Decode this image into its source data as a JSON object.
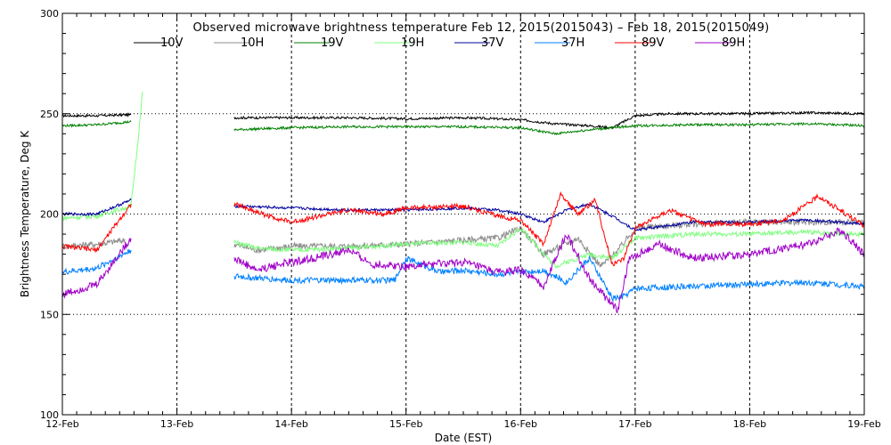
{
  "chart_data": {
    "type": "line",
    "title": "Observed microwave brightness temperature Feb 12, 2015(2015043) – Feb 18, 2015(2015049)",
    "xlabel": "Date (EST)",
    "ylabel": "Brightness Temperature, Deg K",
    "xlim": [
      0,
      7
    ],
    "ylim": [
      100,
      300
    ],
    "x_tick_labels": [
      "12-Feb",
      "13-Feb",
      "14-Feb",
      "15-Feb",
      "16-Feb",
      "17-Feb",
      "18-Feb",
      "19-Feb"
    ],
    "y_tick_labels": [
      "100",
      "150",
      "200",
      "250",
      "300"
    ],
    "grid": "dotted",
    "legend_position": "top",
    "x_unit_note": "x values are days after 12-Feb 00:00 EST",
    "series": [
      {
        "name": "10V",
        "color": "#000000",
        "x": [
          0,
          0.3,
          0.6,
          1.5,
          2.0,
          2.5,
          3.0,
          3.5,
          4.0,
          4.3,
          4.6,
          4.8,
          5.0,
          5.3,
          5.6,
          6.0,
          6.5,
          7.0
        ],
        "y": [
          249,
          249,
          249.5,
          248,
          248,
          248,
          247.5,
          248,
          247,
          245,
          244,
          243,
          249,
          250,
          250,
          250,
          250.5,
          250
        ]
      },
      {
        "name": "10H",
        "color": "#8c8c8c",
        "x": [
          0,
          0.3,
          0.55,
          1.5,
          1.7,
          2.0,
          2.5,
          3.0,
          3.5,
          3.8,
          4.0,
          4.2,
          4.5,
          4.7,
          4.85,
          5.0,
          5.5,
          6.0,
          6.5,
          7.0
        ],
        "y": [
          184,
          185,
          187,
          185,
          182,
          184,
          184,
          185,
          187,
          188,
          193,
          180,
          188,
          174,
          182,
          193,
          195,
          196,
          196,
          196
        ]
      },
      {
        "name": "19V",
        "color": "#008000",
        "x": [
          0,
          0.3,
          0.6,
          1.5,
          2.0,
          2.5,
          3.0,
          3.5,
          4.0,
          4.3,
          4.6,
          5.0,
          5.5,
          6.0,
          6.5,
          7.0
        ],
        "y": [
          244,
          244.5,
          246,
          242,
          243,
          243.5,
          243.5,
          243.5,
          243,
          240,
          242,
          244,
          244.5,
          244.5,
          245,
          244
        ]
      },
      {
        "name": "19H",
        "color": "#80ff80",
        "x": [
          0,
          0.3,
          0.6,
          0.68,
          0.7,
          1.5,
          1.7,
          2.0,
          2.5,
          3.0,
          3.5,
          3.8,
          4.0,
          4.3,
          4.6,
          4.8,
          5.0,
          5.5,
          6.0,
          6.5,
          7.0
        ],
        "y": [
          198,
          199,
          204,
          248,
          261,
          186,
          183,
          182,
          183,
          185,
          186,
          184,
          193,
          174,
          180,
          178,
          188,
          190,
          190,
          191,
          190
        ]
      },
      {
        "name": "37V",
        "color": "#0000a0",
        "x": [
          0,
          0.3,
          0.6,
          1.5,
          2.0,
          2.5,
          3.0,
          3.5,
          3.8,
          4.0,
          4.2,
          4.4,
          4.6,
          4.8,
          5.0,
          5.5,
          6.0,
          6.5,
          7.0
        ],
        "y": [
          200,
          200,
          207,
          204,
          203,
          202,
          202,
          203,
          202,
          200,
          196,
          202,
          205,
          199,
          192,
          196,
          196,
          197,
          195
        ]
      },
      {
        "name": "37H",
        "color": "#0080ff",
        "x": [
          0,
          0.3,
          0.6,
          1.5,
          1.7,
          2.0,
          2.5,
          2.9,
          3.0,
          3.3,
          3.5,
          3.8,
          4.0,
          4.2,
          4.4,
          4.6,
          4.8,
          4.9,
          5.0,
          5.5,
          6.0,
          6.5,
          7.0
        ],
        "y": [
          171,
          173,
          182,
          169,
          168,
          167,
          167,
          167,
          178,
          171,
          172,
          170,
          171,
          172,
          166,
          178,
          158,
          159,
          163,
          164,
          165,
          166,
          164
        ]
      },
      {
        "name": "89V",
        "color": "#ff0000",
        "x": [
          0,
          0.3,
          0.6,
          1.5,
          1.8,
          2.0,
          2.5,
          2.8,
          3.0,
          3.5,
          3.8,
          4.0,
          4.2,
          4.35,
          4.5,
          4.65,
          4.8,
          4.9,
          5.0,
          5.3,
          5.6,
          6.0,
          6.3,
          6.6,
          7.0
        ],
        "y": [
          184,
          182,
          205,
          205,
          199,
          196,
          202,
          200,
          203,
          204,
          199,
          197,
          185,
          210,
          200,
          207,
          175,
          178,
          193,
          202,
          195,
          195,
          197,
          209,
          194
        ]
      },
      {
        "name": "89H",
        "color": "#a000c8",
        "x": [
          0,
          0.3,
          0.6,
          1.5,
          1.7,
          1.9,
          2.2,
          2.5,
          2.7,
          3.0,
          3.5,
          3.8,
          4.0,
          4.2,
          4.4,
          4.6,
          4.75,
          4.85,
          4.95,
          5.2,
          5.5,
          6.0,
          6.5,
          6.8,
          7.0
        ],
        "y": [
          160,
          165,
          188,
          178,
          172,
          175,
          178,
          182,
          175,
          174,
          176,
          171,
          172,
          164,
          190,
          168,
          158,
          152,
          178,
          185,
          178,
          180,
          185,
          192,
          180
        ]
      }
    ]
  }
}
